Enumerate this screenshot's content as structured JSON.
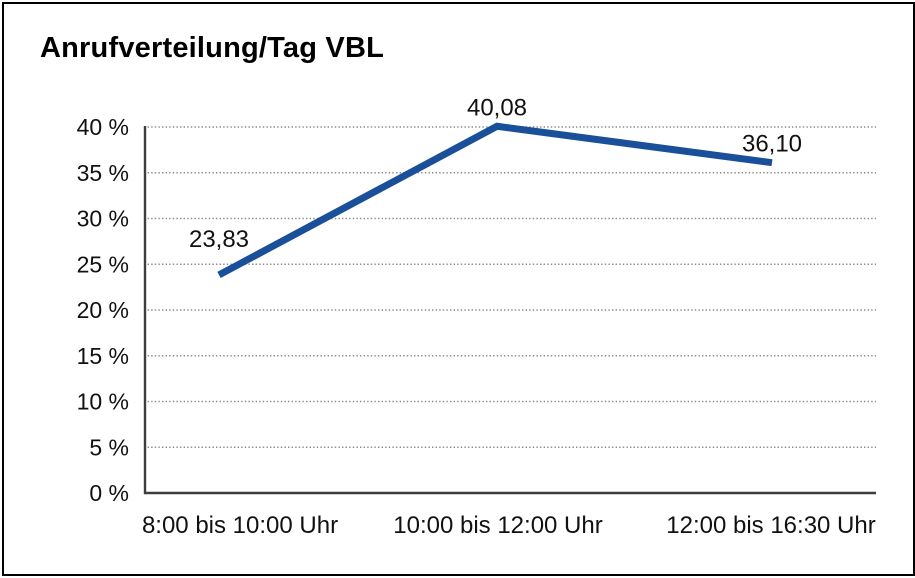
{
  "title": "Anrufverteilung/Tag VBL",
  "chart_data": {
    "type": "line",
    "title": "Anrufverteilung/Tag VBL",
    "categories": [
      "8:00 bis 10:00 Uhr",
      "10:00 bis 12:00 Uhr",
      "12:00 bis 16:30 Uhr"
    ],
    "values": [
      23.83,
      40.08,
      36.1
    ],
    "point_labels": [
      "23,83",
      "40,08",
      "36,10"
    ],
    "xlabel": "",
    "ylabel": "",
    "y_axis": {
      "min": 0,
      "max": 40,
      "tick_values": [
        0,
        5,
        10,
        15,
        20,
        25,
        30,
        35,
        40
      ],
      "tick_labels": [
        "0 %",
        "5 %",
        "10 %",
        "15 %",
        "20 %",
        "25 %",
        "30 %",
        "35 %",
        "40 %"
      ]
    },
    "legend": "none",
    "grid": "horizontal dotted",
    "colors": {
      "line": "#1a4f9a",
      "grid": "#8c8c8c",
      "axis": "#3d3d3d",
      "text": "#111111",
      "background": "#ffffff",
      "border": "#000000"
    }
  }
}
